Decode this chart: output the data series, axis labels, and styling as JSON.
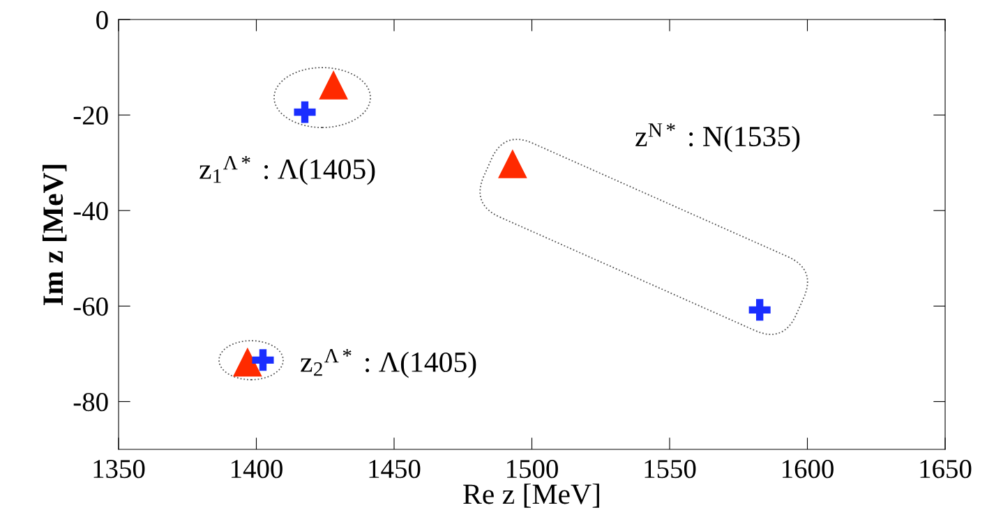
{
  "chart_data": {
    "type": "scatter",
    "xlabel": "Re z [MeV]",
    "ylabel": "Im z [MeV]",
    "xlim": [
      1350,
      1650
    ],
    "xticks": [
      1350,
      1400,
      1450,
      1500,
      1550,
      1600,
      1650
    ],
    "ylim": [
      -90,
      0
    ],
    "yticks": [
      -80,
      -60,
      -40,
      -20,
      0
    ],
    "grid": false,
    "legend": false,
    "series": [
      {
        "color": "#ff2a00",
        "marker": "triangle",
        "x": [
          1428,
          1493,
          1396.8
        ],
        "values": [
          -13.7,
          -30.2,
          -71.7
        ]
      },
      {
        "color": "#1a2eff",
        "marker": "cross",
        "x": [
          1417.6,
          1582.7,
          1402.4
        ],
        "values": [
          -19.4,
          -60.8,
          -71.3
        ]
      }
    ],
    "annotations": [
      "z$_{1}$$^{Λ*}$ : Λ(1405)",
      "z$_{2}$$^{Λ*}$ : Λ(1405)",
      "z$^{N*}$ : N(1535)"
    ]
  }
}
